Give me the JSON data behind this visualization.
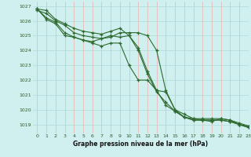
{
  "xlabel": "Graphe pression niveau de la mer (hPa)",
  "ylim": [
    1018.4,
    1027.3
  ],
  "xlim": [
    -0.5,
    23
  ],
  "yticks": [
    1019,
    1020,
    1021,
    1022,
    1023,
    1024,
    1025,
    1026,
    1027
  ],
  "xticks": [
    0,
    1,
    2,
    3,
    4,
    5,
    6,
    7,
    8,
    9,
    10,
    11,
    12,
    13,
    14,
    15,
    16,
    17,
    18,
    19,
    20,
    21,
    22,
    23
  ],
  "background_color": "#d0f0f0",
  "grid_color_h": "#b0d8d8",
  "grid_color_v": "#f0b0b0",
  "line_color": "#2d6a2d",
  "marker": "+",
  "tick_color": "#2d5a2d",
  "lines": [
    [
      1026.8,
      1026.7,
      1026.1,
      1025.8,
      1025.5,
      1025.3,
      1025.2,
      1025.1,
      1025.3,
      1025.5,
      1025.0,
      1024.2,
      1022.6,
      1021.3,
      1021.2,
      1020.0,
      1019.7,
      1019.4,
      1019.4,
      1019.4,
      1019.4,
      1019.3,
      1019.0,
      1018.8
    ],
    [
      1026.7,
      1026.5,
      1026.0,
      1025.7,
      1025.2,
      1025.0,
      1024.9,
      1024.8,
      1025.0,
      1024.9,
      1025.0,
      1024.0,
      1022.4,
      1021.2,
      1020.5,
      1019.9,
      1019.5,
      1019.3,
      1019.3,
      1019.2,
      1019.4,
      1019.3,
      1019.1,
      1018.9
    ],
    [
      1026.8,
      1026.2,
      1025.9,
      1025.2,
      1024.9,
      1024.7,
      1024.5,
      1024.3,
      1024.5,
      1024.5,
      1023.0,
      1022.0,
      1022.0,
      1021.3,
      1020.3,
      1019.9,
      1019.5,
      1019.3,
      1019.3,
      1019.3,
      1019.3,
      1019.2,
      1019.0,
      1018.8
    ],
    [
      1026.8,
      1026.1,
      1025.8,
      1025.0,
      1024.9,
      1024.7,
      1024.6,
      1024.8,
      1024.9,
      1025.2,
      1025.2,
      1025.2,
      1025.0,
      1024.0,
      1021.3,
      1020.0,
      1019.5,
      1019.4,
      1019.3,
      1019.3,
      1019.3,
      1019.2,
      1019.0,
      1018.9
    ]
  ]
}
